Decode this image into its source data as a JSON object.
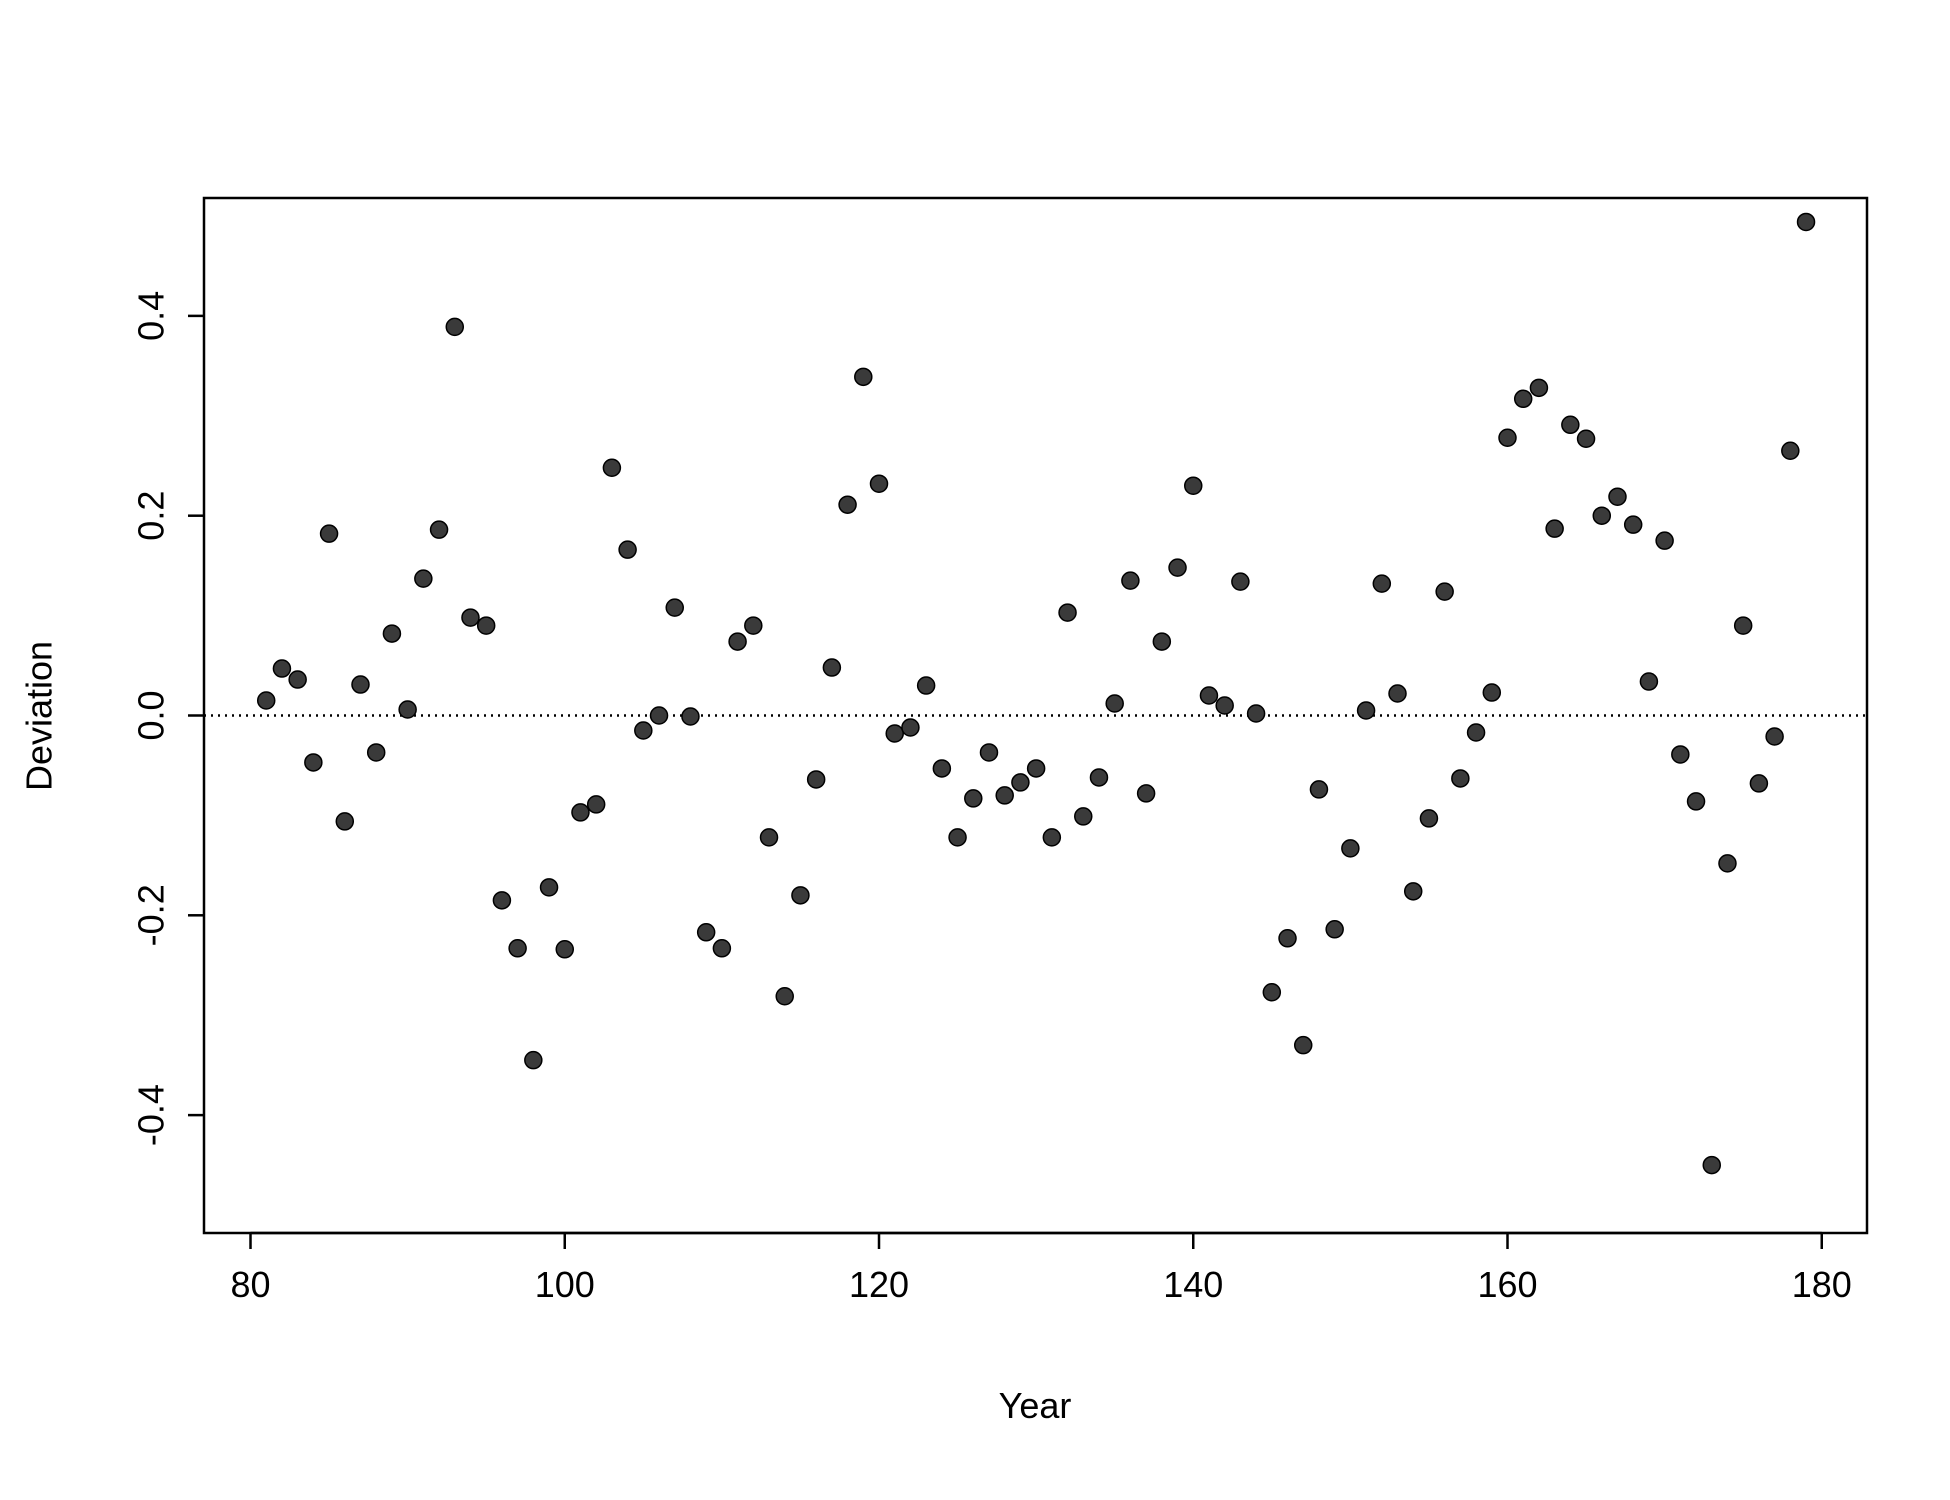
{
  "chart_data": {
    "type": "scatter",
    "x_label": "Year",
    "y_label": "Deviation",
    "x": [
      81,
      82,
      83,
      84,
      85,
      86,
      87,
      88,
      89,
      90,
      91,
      92,
      93,
      94,
      95,
      96,
      97,
      98,
      99,
      100,
      101,
      102,
      103,
      104,
      105,
      106,
      107,
      108,
      109,
      110,
      111,
      112,
      113,
      114,
      115,
      116,
      117,
      118,
      119,
      120,
      121,
      122,
      123,
      124,
      125,
      126,
      127,
      128,
      129,
      130,
      131,
      132,
      133,
      134,
      135,
      136,
      137,
      138,
      139,
      140,
      141,
      142,
      143,
      144,
      145,
      146,
      147,
      148,
      149,
      150,
      151,
      152,
      153,
      154,
      155,
      156,
      157,
      158,
      159,
      160,
      161,
      162,
      163,
      164,
      165,
      166,
      167,
      168,
      169,
      170,
      171,
      172,
      173,
      174,
      175,
      176,
      177,
      178,
      179
    ],
    "values": [
      0.015,
      0.047,
      0.036,
      -0.047,
      0.182,
      -0.106,
      0.031,
      -0.037,
      0.082,
      0.006,
      0.137,
      0.186,
      0.389,
      0.098,
      0.09,
      -0.185,
      -0.233,
      -0.345,
      -0.172,
      -0.234,
      -0.097,
      -0.089,
      0.248,
      0.166,
      -0.015,
      0.0,
      0.108,
      -0.001,
      -0.217,
      -0.233,
      0.074,
      0.09,
      -0.122,
      -0.281,
      -0.18,
      -0.064,
      0.048,
      0.211,
      0.339,
      0.232,
      -0.018,
      -0.012,
      0.03,
      -0.053,
      -0.122,
      -0.083,
      -0.037,
      -0.08,
      -0.067,
      -0.053,
      -0.122,
      0.103,
      -0.101,
      -0.062,
      0.012,
      0.135,
      -0.078,
      0.074,
      0.148,
      0.23,
      0.02,
      0.01,
      0.134,
      0.002,
      -0.277,
      -0.223,
      -0.33,
      -0.074,
      -0.214,
      -0.133,
      0.005,
      0.132,
      0.022,
      -0.176,
      -0.103,
      0.124,
      -0.063,
      -0.017,
      0.023,
      0.278,
      0.317,
      0.328,
      0.187,
      0.291,
      0.277,
      0.2,
      0.219,
      0.191,
      0.034,
      0.175,
      -0.039,
      -0.086,
      -0.45,
      -0.148,
      0.09,
      -0.068,
      -0.021,
      0.265,
      0.494
    ],
    "color": "#3a3a3a",
    "xlim": [
      77.04,
      182.88
    ],
    "ylim": [
      -0.518,
      0.518
    ],
    "xticks": [
      80,
      100,
      120,
      140,
      160,
      180
    ],
    "yticks": [
      -0.4,
      -0.2,
      {
        "value": 0,
        "label": "0.0"
      },
      0.2,
      0.4
    ],
    "hline": 0
  }
}
